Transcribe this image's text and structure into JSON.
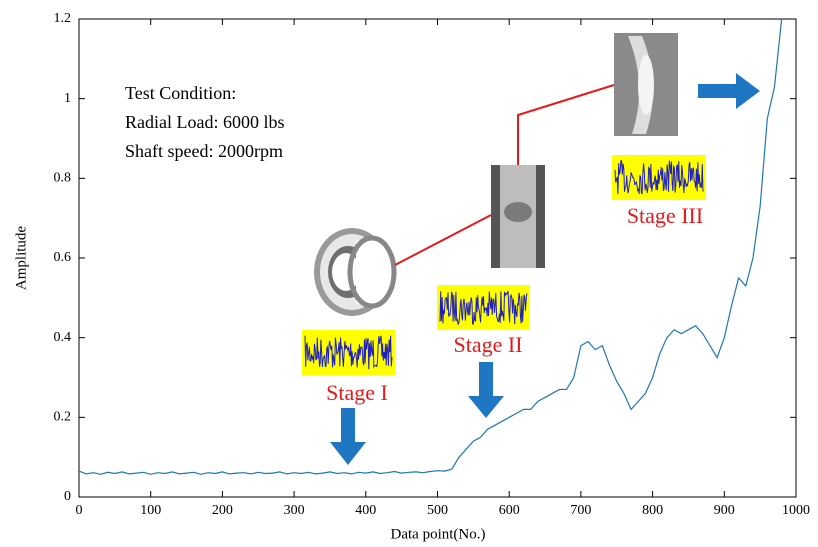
{
  "chart_data": {
    "type": "line",
    "xlabel": "Data point(No.)",
    "ylabel": "Amplitude",
    "x": [
      0,
      10,
      20,
      30,
      40,
      50,
      60,
      70,
      80,
      90,
      100,
      110,
      120,
      130,
      140,
      150,
      160,
      170,
      180,
      190,
      200,
      210,
      220,
      230,
      240,
      250,
      260,
      270,
      280,
      290,
      300,
      310,
      320,
      330,
      340,
      350,
      360,
      370,
      380,
      390,
      400,
      410,
      420,
      430,
      440,
      450,
      460,
      470,
      480,
      490,
      500,
      510,
      520,
      530,
      540,
      550,
      560,
      570,
      580,
      590,
      600,
      610,
      620,
      630,
      640,
      650,
      660,
      670,
      680,
      690,
      700,
      710,
      720,
      730,
      740,
      750,
      760,
      770,
      780,
      790,
      800,
      810,
      820,
      830,
      840,
      850,
      860,
      870,
      880,
      890,
      900,
      910,
      920,
      930,
      940,
      950,
      960,
      970,
      980
    ],
    "series": [
      {
        "name": "Amplitude",
        "color": "#1f77b4",
        "values": [
          0.065,
          0.058,
          0.061,
          0.057,
          0.062,
          0.059,
          0.063,
          0.058,
          0.06,
          0.062,
          0.057,
          0.061,
          0.059,
          0.063,
          0.058,
          0.06,
          0.062,
          0.057,
          0.061,
          0.059,
          0.063,
          0.058,
          0.06,
          0.061,
          0.058,
          0.062,
          0.059,
          0.06,
          0.063,
          0.058,
          0.061,
          0.059,
          0.062,
          0.058,
          0.06,
          0.063,
          0.059,
          0.061,
          0.058,
          0.062,
          0.06,
          0.063,
          0.059,
          0.061,
          0.064,
          0.06,
          0.062,
          0.063,
          0.061,
          0.064,
          0.066,
          0.065,
          0.07,
          0.1,
          0.12,
          0.14,
          0.15,
          0.17,
          0.18,
          0.19,
          0.2,
          0.21,
          0.22,
          0.22,
          0.24,
          0.25,
          0.26,
          0.27,
          0.27,
          0.3,
          0.38,
          0.39,
          0.37,
          0.38,
          0.33,
          0.29,
          0.26,
          0.22,
          0.24,
          0.26,
          0.3,
          0.36,
          0.4,
          0.42,
          0.41,
          0.42,
          0.43,
          0.41,
          0.38,
          0.35,
          0.4,
          0.48,
          0.55,
          0.53,
          0.6,
          0.73,
          0.95,
          1.03,
          1.2
        ]
      }
    ],
    "xlim": [
      0,
      1000
    ],
    "xticks": [
      0,
      100,
      200,
      300,
      400,
      500,
      600,
      700,
      800,
      900,
      1000
    ],
    "ylim": [
      0,
      1.2
    ],
    "yticks": [
      0,
      0.2,
      0.4,
      0.6,
      0.8,
      1,
      1.2
    ],
    "grid": false,
    "annotations": [
      "Test Condition:",
      "Radial Load: 6000 lbs",
      "Shaft speed: 2000rpm"
    ],
    "stage_labels": [
      "Stage I",
      "Stage II",
      "Stage III"
    ],
    "stage_label_color": "#e41a1c"
  }
}
